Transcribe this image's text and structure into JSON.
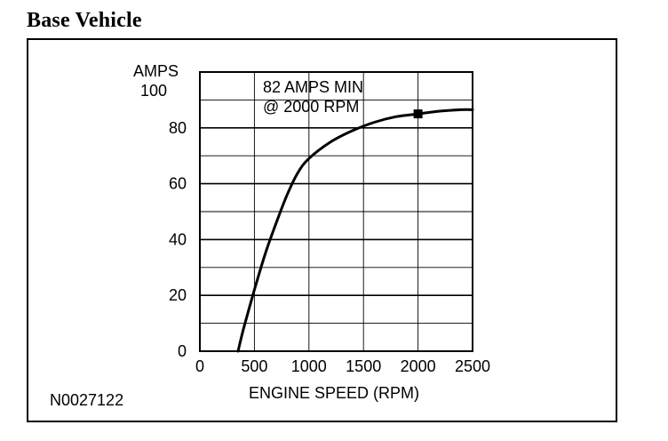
{
  "page": {
    "heading": "Base Vehicle",
    "figure_id": "N0027122"
  },
  "chart_data": {
    "type": "line",
    "title": "",
    "xlabel": "ENGINE SPEED (RPM)",
    "ylabel": "AMPS",
    "xlim": [
      0,
      2500
    ],
    "ylim": [
      0,
      100
    ],
    "x_ticks": [
      0,
      500,
      1000,
      1500,
      2000,
      2500
    ],
    "y_ticks": [
      0,
      20,
      40,
      60,
      80,
      100
    ],
    "x_tick_labels": [
      "0",
      "500",
      "1000",
      "1500",
      "2000",
      "2500"
    ],
    "y_tick_labels": [
      "0",
      "20",
      "40",
      "60",
      "80",
      "100"
    ],
    "grid": true,
    "series": [
      {
        "x": [
          350,
          400,
          500,
          600,
          700,
          800,
          900,
          1000,
          1200,
          1400,
          1600,
          1800,
          2000,
          2200,
          2400,
          2500
        ],
        "y": [
          0,
          8,
          22,
          35,
          46,
          56,
          64,
          69,
          75,
          79,
          82,
          84,
          85,
          86,
          86.5,
          86.5
        ],
        "color": "#000000"
      }
    ],
    "marker": {
      "x": 2000,
      "y": 85
    },
    "annotation": {
      "line1": "82 AMPS MIN",
      "line2": "@ 2000 RPM"
    }
  }
}
